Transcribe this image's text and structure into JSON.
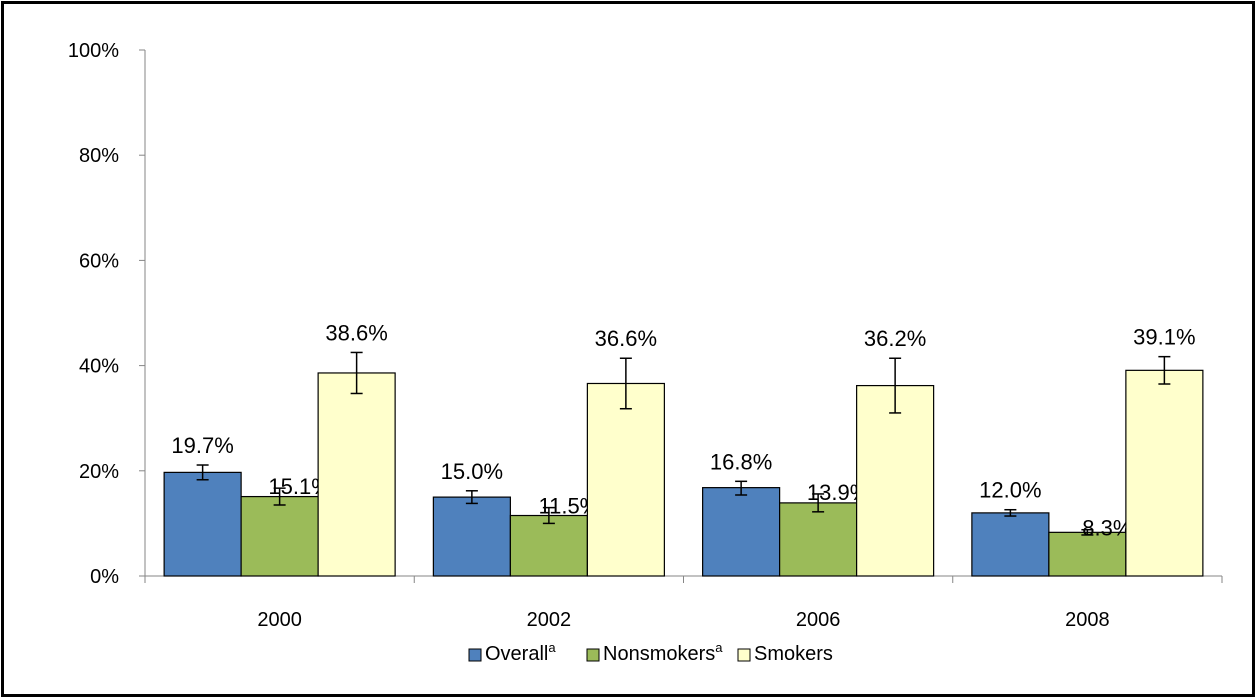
{
  "chart_data": {
    "type": "bar",
    "title": "",
    "xlabel": "",
    "ylabel": "",
    "ylim": [
      0,
      100
    ],
    "yticks": [
      "0%",
      "20%",
      "40%",
      "60%",
      "80%",
      "100%"
    ],
    "categories": [
      "2000",
      "2002",
      "2006",
      "2008"
    ],
    "legend_position": "bottom",
    "series": [
      {
        "name": "Overall",
        "superscript": "a",
        "color": "#4F81BD",
        "values": [
          19.7,
          15.0,
          16.8,
          12.0
        ],
        "labels": [
          "19.7%",
          "15.0%",
          "16.8%",
          "12.0%"
        ],
        "error_low": [
          18.3,
          13.8,
          15.4,
          11.4
        ],
        "error_high": [
          21.1,
          16.2,
          18.0,
          12.6
        ]
      },
      {
        "name": "Nonsmokers",
        "superscript": "a",
        "color": "#9BBB59",
        "values": [
          15.1,
          11.5,
          13.9,
          8.3
        ],
        "labels": [
          "15.1%",
          "11.5%",
          "13.9%",
          "8.3%"
        ],
        "error_low": [
          13.5,
          10.0,
          12.2,
          7.8
        ],
        "error_high": [
          16.7,
          13.0,
          15.6,
          8.8
        ]
      },
      {
        "name": "Smokers",
        "superscript": "",
        "color": "#FFFFCC",
        "values": [
          38.6,
          36.6,
          36.2,
          39.1
        ],
        "labels": [
          "38.6%",
          "36.6%",
          "36.2%",
          "39.1%"
        ],
        "error_low": [
          34.7,
          31.8,
          31.0,
          36.5
        ],
        "error_high": [
          42.5,
          41.4,
          41.4,
          41.7
        ]
      }
    ]
  }
}
